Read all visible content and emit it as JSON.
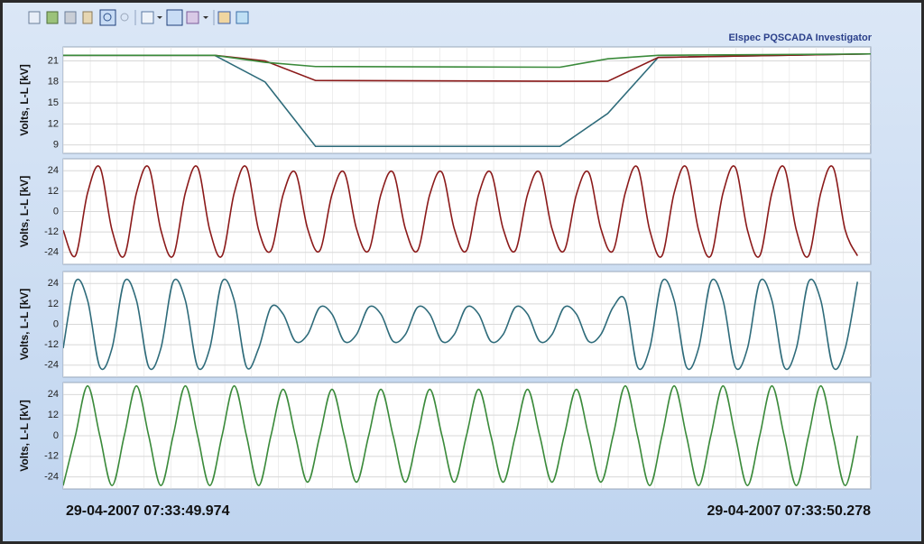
{
  "app": {
    "title": "Elspec PQSCADA Investigator",
    "start_time": "29-04-2007 07:33:49.974",
    "end_time": "29-04-2007 07:33:50.278"
  },
  "chart_data": [
    {
      "type": "line",
      "y_label": "Volts, L-L [kV]",
      "xlim": [
        0,
        304
      ],
      "ylim": [
        7.8,
        23
      ],
      "yticks": [
        9,
        12,
        15,
        18,
        21
      ],
      "grid": true,
      "smooth": false,
      "x": [
        0,
        57,
        76,
        95,
        187,
        205,
        224,
        304
      ],
      "series": [
        {
          "color": "#2e6b7a",
          "values": [
            21.8,
            21.8,
            18,
            8.8,
            8.8,
            13.5,
            21.5,
            22
          ]
        },
        {
          "color": "#8b1a1a",
          "values": [
            21.8,
            21.8,
            21,
            18.2,
            18.1,
            18.1,
            21.5,
            22
          ]
        },
        {
          "color": "#3a8a3a",
          "values": [
            21.8,
            21.8,
            20.8,
            20.2,
            20.1,
            21.3,
            21.8,
            22
          ]
        }
      ]
    },
    {
      "type": "line",
      "y_label": "Volts, L-L [kV]",
      "xlim": [
        0,
        304
      ],
      "ylim": [
        -31,
        31
      ],
      "yticks": [
        -24,
        -12,
        0,
        12,
        24
      ],
      "grid": true,
      "smooth": true,
      "x": [
        0,
        4.6,
        9.2,
        13.8,
        18.4,
        23,
        27.6,
        32.2,
        36.8,
        41.4,
        46,
        50.6,
        55.2,
        59.8,
        64.4,
        69,
        73.6,
        78.2,
        82.8,
        87.4,
        92,
        96.6,
        101.2,
        105.8,
        110.4,
        115,
        119.6,
        124.2,
        128.8,
        133.4,
        138,
        142.6,
        147.2,
        151.8,
        156.4,
        161,
        165.6,
        170.2,
        174.8,
        179.4,
        184,
        188.6,
        193.2,
        197.8,
        202.4,
        207,
        211.6,
        216.2,
        220.8,
        225.4,
        230,
        234.6,
        239.2,
        243.8,
        248.4,
        253,
        257.6,
        262.2,
        266.8,
        271.4,
        276,
        280.6,
        285.2,
        289.8,
        294.4,
        299
      ],
      "series": [
        {
          "color": "#8b1a1a",
          "values": [
            -11,
            -26,
            11,
            26,
            -11,
            -26,
            11,
            26,
            -11,
            -26,
            11,
            26,
            -11,
            -26,
            11,
            26,
            -11,
            -23,
            10,
            23,
            -10,
            -23,
            10,
            23,
            -10,
            -23,
            10,
            23,
            -10,
            -23,
            10,
            23,
            -10,
            -23,
            10,
            23,
            -10,
            -23,
            10,
            23,
            -10,
            -23,
            10,
            23,
            -10,
            -23,
            11,
            26,
            -11,
            -26,
            11,
            26,
            -11,
            -26,
            11,
            26,
            -11,
            -26,
            11,
            26,
            -11,
            -26,
            11,
            26,
            -11,
            -26
          ]
        }
      ]
    },
    {
      "type": "line",
      "y_label": "Volts, L-L [kV]",
      "xlim": [
        0,
        304
      ],
      "ylim": [
        -31,
        31
      ],
      "yticks": [
        -24,
        -12,
        0,
        12,
        24
      ],
      "grid": true,
      "smooth": true,
      "x": [
        0,
        4.6,
        9.2,
        13.8,
        18.4,
        23,
        27.6,
        32.2,
        36.8,
        41.4,
        46,
        50.6,
        55.2,
        59.8,
        64.4,
        69,
        73.6,
        78.2,
        82.8,
        87.4,
        92,
        96.6,
        101.2,
        105.8,
        110.4,
        115,
        119.6,
        124.2,
        128.8,
        133.4,
        138,
        142.6,
        147.2,
        151.8,
        156.4,
        161,
        165.6,
        170.2,
        174.8,
        179.4,
        184,
        188.6,
        193.2,
        197.8,
        202.4,
        207,
        211.6,
        216.2,
        220.8,
        225.4,
        230,
        234.6,
        239.2,
        243.8,
        248.4,
        253,
        257.6,
        262.2,
        266.8,
        271.4,
        276,
        280.6,
        285.2,
        289.8,
        294.4,
        299
      ],
      "series": [
        {
          "color": "#2e6b7a",
          "values": [
            -14,
            25,
            14,
            -25,
            -14,
            25,
            14,
            -25,
            -14,
            25,
            14,
            -25,
            -14,
            25,
            14,
            -25,
            -14,
            10,
            6,
            -10,
            -6,
            10,
            6,
            -10,
            -6,
            10,
            6,
            -10,
            -6,
            10,
            6,
            -10,
            -6,
            10,
            6,
            -10,
            -6,
            10,
            6,
            -10,
            -6,
            10,
            6,
            -10,
            -6,
            10,
            14,
            -25,
            -14,
            25,
            14,
            -25,
            -14,
            25,
            14,
            -25,
            -14,
            25,
            14,
            -25,
            -14,
            25,
            14,
            -25,
            -14,
            25
          ]
        }
      ]
    },
    {
      "type": "line",
      "y_label": "Volts, L-L [kV]",
      "xlim": [
        0,
        304
      ],
      "ylim": [
        -31,
        31
      ],
      "yticks": [
        -24,
        -12,
        0,
        12,
        24
      ],
      "grid": true,
      "smooth": true,
      "x": [
        0,
        4.6,
        9.2,
        13.8,
        18.4,
        23,
        27.6,
        32.2,
        36.8,
        41.4,
        46,
        50.6,
        55.2,
        59.8,
        64.4,
        69,
        73.6,
        78.2,
        82.8,
        87.4,
        92,
        96.6,
        101.2,
        105.8,
        110.4,
        115,
        119.6,
        124.2,
        128.8,
        133.4,
        138,
        142.6,
        147.2,
        151.8,
        156.4,
        161,
        165.6,
        170.2,
        174.8,
        179.4,
        184,
        188.6,
        193.2,
        197.8,
        202.4,
        207,
        211.6,
        216.2,
        220.8,
        225.4,
        230,
        234.6,
        239.2,
        243.8,
        248.4,
        253,
        257.6,
        262.2,
        266.8,
        271.4,
        276,
        280.6,
        285.2,
        289.8,
        294.4,
        299
      ],
      "series": [
        {
          "color": "#3a8a3a",
          "values": [
            -29,
            0,
            29,
            0,
            -29,
            0,
            29,
            0,
            -29,
            0,
            29,
            0,
            -29,
            0,
            29,
            0,
            -29,
            0,
            27,
            0,
            -27,
            0,
            27,
            0,
            -27,
            0,
            27,
            0,
            -27,
            0,
            27,
            0,
            -27,
            0,
            27,
            0,
            -27,
            0,
            27,
            0,
            -27,
            0,
            27,
            0,
            -27,
            0,
            29,
            0,
            -29,
            0,
            29,
            0,
            -29,
            0,
            29,
            0,
            -29,
            0,
            29,
            0,
            -29,
            0,
            29,
            0,
            -29,
            0
          ]
        }
      ]
    }
  ]
}
